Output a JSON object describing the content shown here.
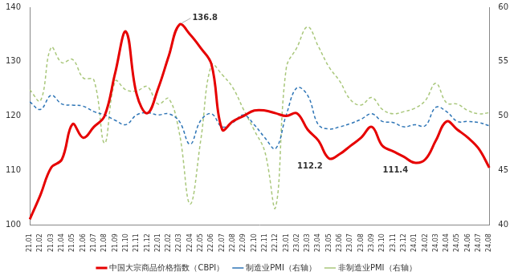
{
  "chart_data": {
    "type": "line",
    "categories": [
      "21.01",
      "21.02",
      "21.03",
      "21.04",
      "21.05",
      "21.06",
      "21.07",
      "21.08",
      "21.09",
      "21.10",
      "21.11",
      "21.12",
      "22.01",
      "22.02",
      "22.03",
      "22.04",
      "22.05",
      "22.06",
      "22.07",
      "22.08",
      "22.09",
      "22.10",
      "22.11",
      "22.12",
      "23.01",
      "23.02",
      "23.03",
      "23.04",
      "23.05",
      "23.06",
      "23.07",
      "23.08",
      "23.09",
      "23.10",
      "23.11",
      "23.12",
      "24.01",
      "24.02",
      "24.03",
      "24.04",
      "24.05",
      "24.06",
      "24.07",
      "24.08"
    ],
    "series": [
      {
        "name": "中国大宗商品价格指数（CBPI）",
        "color": "#e60000",
        "line_style": "solid",
        "marker": "none",
        "values": [
          101,
          105.5,
          110.5,
          112,
          118.5,
          116,
          118,
          120,
          128,
          135.5,
          124,
          120.5,
          125,
          131,
          136.8,
          135,
          132.5,
          129.5,
          117.5,
          119,
          120,
          121,
          121,
          120.5,
          120,
          120.5,
          117.5,
          115.5,
          112.2,
          113,
          114.5,
          116,
          118,
          114.5,
          113.5,
          112.5,
          111.4,
          112,
          115.5,
          119,
          117.5,
          116,
          114,
          110.5
        ]
      },
      {
        "name": "制造业PMI（右轴）",
        "color": "#2e75b6",
        "line_style": "dashed",
        "marker": "none",
        "axis": "y2",
        "values": [
          51.3,
          50.6,
          51.9,
          51.1,
          51.0,
          50.9,
          50.4,
          50.1,
          49.6,
          49.2,
          50.1,
          50.3,
          50.1,
          50.2,
          49.5,
          47.4,
          49.6,
          50.2,
          49.0,
          49.4,
          50.1,
          49.2,
          48.0,
          47.0,
          50.1,
          52.6,
          51.9,
          49.2,
          48.8,
          49.0,
          49.3,
          49.7,
          50.2,
          49.5,
          49.4,
          49.0,
          49.2,
          49.1,
          50.8,
          50.4,
          49.5,
          49.5,
          49.4,
          49.1
        ]
      },
      {
        "name": "非制造业PMI（右轴）",
        "color": "#a9c77b",
        "line_style": "dashed",
        "marker": "none",
        "axis": "y2",
        "values": [
          52.4,
          51.4,
          56.3,
          54.9,
          55.2,
          53.5,
          53.3,
          47.5,
          53.2,
          52.4,
          52.3,
          52.7,
          51.1,
          51.6,
          48.4,
          41.9,
          47.8,
          54.7,
          53.8,
          52.6,
          50.6,
          48.7,
          46.7,
          41.6,
          54.4,
          56.3,
          58.2,
          56.4,
          54.5,
          53.2,
          51.5,
          51.0,
          51.7,
          50.6,
          50.2,
          50.4,
          50.7,
          51.4,
          53.0,
          51.2,
          51.1,
          50.5,
          50.2,
          50.3
        ]
      }
    ],
    "ylim": [
      100,
      140
    ],
    "yticks": [
      100,
      110,
      120,
      130,
      140
    ],
    "y2lim": [
      40,
      60
    ],
    "y2ticks": [
      40,
      45,
      50,
      55,
      60
    ],
    "annotations": [
      {
        "x": "22.03",
        "y": 136.8,
        "text": "136.8"
      },
      {
        "x": "23.05",
        "y": 112.2,
        "text": "112.2"
      },
      {
        "x": "24.01",
        "y": 111.4,
        "text": "111.4"
      }
    ],
    "grid": false,
    "legend": "bottom"
  }
}
